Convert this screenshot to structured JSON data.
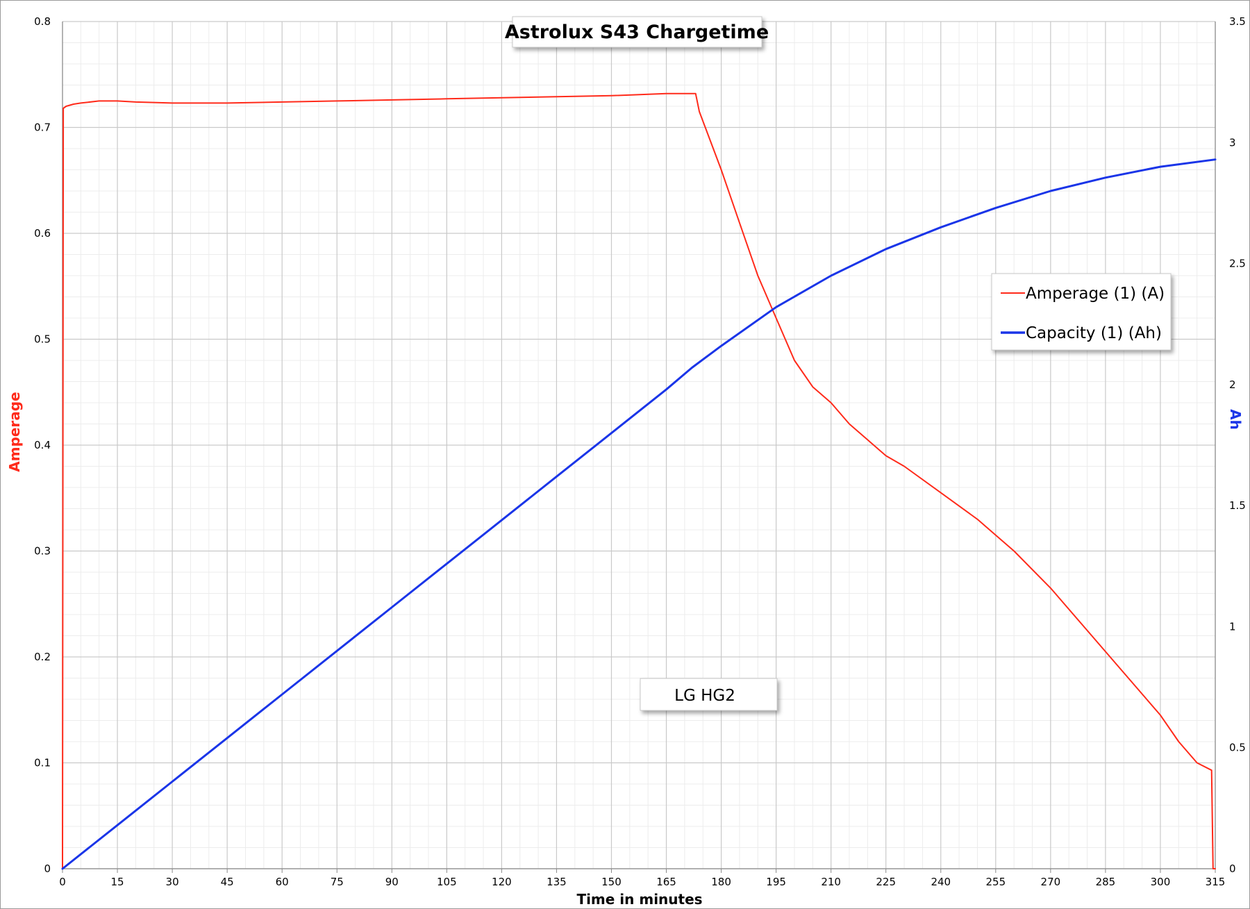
{
  "chart_data": {
    "type": "line",
    "title": "Astrolux S43 Chargetime",
    "annotation": "LG HG2",
    "xlabel": "Time in minutes",
    "ylabel_left": "Amperage",
    "ylabel_right": "Ah",
    "xlim": [
      0,
      315
    ],
    "ylim_left": [
      0,
      0.8
    ],
    "ylim_right": [
      0,
      3.5
    ],
    "x_ticks": [
      "0",
      "15",
      "30",
      "45",
      "60",
      "75",
      "90",
      "105",
      "120",
      "135",
      "150",
      "165",
      "180",
      "195",
      "210",
      "225",
      "240",
      "255",
      "270",
      "285",
      "300",
      "315"
    ],
    "y_left_ticks": [
      "0",
      "0.1",
      "0.2",
      "0.3",
      "0.4",
      "0.5",
      "0.6",
      "0.7",
      "0.8"
    ],
    "y_right_ticks": [
      "0",
      "0.5",
      "1",
      "1.5",
      "2",
      "2.5",
      "3",
      "3.5"
    ],
    "grid": true,
    "legend_position": "right, upper-middle",
    "series": [
      {
        "name": "Amperage (1) (A)",
        "axis": "left",
        "color": "#ff2a1a",
        "x": [
          0,
          0.2,
          1,
          3,
          5,
          10,
          15,
          20,
          30,
          45,
          60,
          75,
          90,
          105,
          120,
          135,
          150,
          165,
          170,
          173,
          174,
          180,
          185,
          190,
          195,
          200,
          205,
          210,
          215,
          220,
          225,
          230,
          240,
          250,
          255,
          260,
          270,
          280,
          290,
          300,
          305,
          310,
          314,
          314.4,
          315
        ],
        "values": [
          0,
          0.718,
          0.72,
          0.722,
          0.723,
          0.725,
          0.725,
          0.724,
          0.723,
          0.723,
          0.724,
          0.725,
          0.726,
          0.727,
          0.728,
          0.729,
          0.73,
          0.732,
          0.732,
          0.732,
          0.715,
          0.66,
          0.61,
          0.56,
          0.52,
          0.48,
          0.455,
          0.44,
          0.42,
          0.405,
          0.39,
          0.38,
          0.355,
          0.33,
          0.315,
          0.3,
          0.265,
          0.225,
          0.185,
          0.145,
          0.12,
          0.1,
          0.093,
          0,
          0
        ],
        "visible_labels": []
      },
      {
        "name": "Capacity (1) (Ah)",
        "axis": "right",
        "color": "#1a35e8",
        "x": [
          0,
          15,
          30,
          45,
          60,
          75,
          90,
          105,
          120,
          135,
          150,
          165,
          172,
          180,
          195,
          210,
          225,
          240,
          255,
          270,
          285,
          300,
          315
        ],
        "values": [
          0,
          0.18,
          0.36,
          0.54,
          0.72,
          0.9,
          1.08,
          1.26,
          1.44,
          1.62,
          1.8,
          1.98,
          2.07,
          2.16,
          2.32,
          2.45,
          2.56,
          2.65,
          2.73,
          2.8,
          2.855,
          2.9,
          2.93
        ],
        "visible_labels": []
      }
    ]
  }
}
